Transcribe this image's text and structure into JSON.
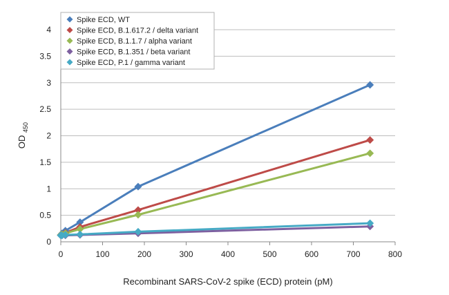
{
  "chart_data": {
    "type": "line",
    "xlabel": "Recombinant SARS-CoV-2 spike (ECD) protein (pM)",
    "ylabel_main": "OD",
    "ylabel_sub": "450",
    "xlim": [
      0,
      800
    ],
    "ylim": [
      0,
      4
    ],
    "xticks": [
      "0",
      "100",
      "200",
      "300",
      "400",
      "500",
      "600",
      "700",
      "800"
    ],
    "yticks": [
      "0",
      "0.5",
      "1",
      "1.5",
      "2",
      "2.5",
      "3",
      "3.5",
      "4"
    ],
    "grid": "horizontal",
    "legend_position": "top-left",
    "series": [
      {
        "name": "Spike ECD, WT",
        "color": "#4a7ebb",
        "x": [
          0,
          3,
          11,
          46,
          185,
          740
        ],
        "y": [
          0.13,
          0.16,
          0.21,
          0.37,
          1.04,
          2.96
        ]
      },
      {
        "name": "Spike ECD, B.1.617.2 / delta variant",
        "color": "#be4b48",
        "x": [
          0,
          3,
          11,
          46,
          185,
          740
        ],
        "y": [
          0.13,
          0.14,
          0.17,
          0.28,
          0.6,
          1.92
        ]
      },
      {
        "name": "Spike ECD, B.1.1.7 / alpha variant",
        "color": "#98b954",
        "x": [
          0,
          3,
          11,
          46,
          185,
          740
        ],
        "y": [
          0.13,
          0.14,
          0.16,
          0.24,
          0.51,
          1.67
        ]
      },
      {
        "name": "Spike ECD, B.1.351 / beta variant",
        "color": "#7d60a0",
        "x": [
          0,
          3,
          11,
          46,
          185,
          740
        ],
        "y": [
          0.12,
          0.12,
          0.12,
          0.13,
          0.16,
          0.29
        ]
      },
      {
        "name": "Spike ECD, P.1 / gamma variant",
        "color": "#46aac5",
        "x": [
          0,
          3,
          11,
          46,
          185,
          740
        ],
        "y": [
          0.12,
          0.12,
          0.13,
          0.14,
          0.19,
          0.35
        ]
      }
    ]
  }
}
